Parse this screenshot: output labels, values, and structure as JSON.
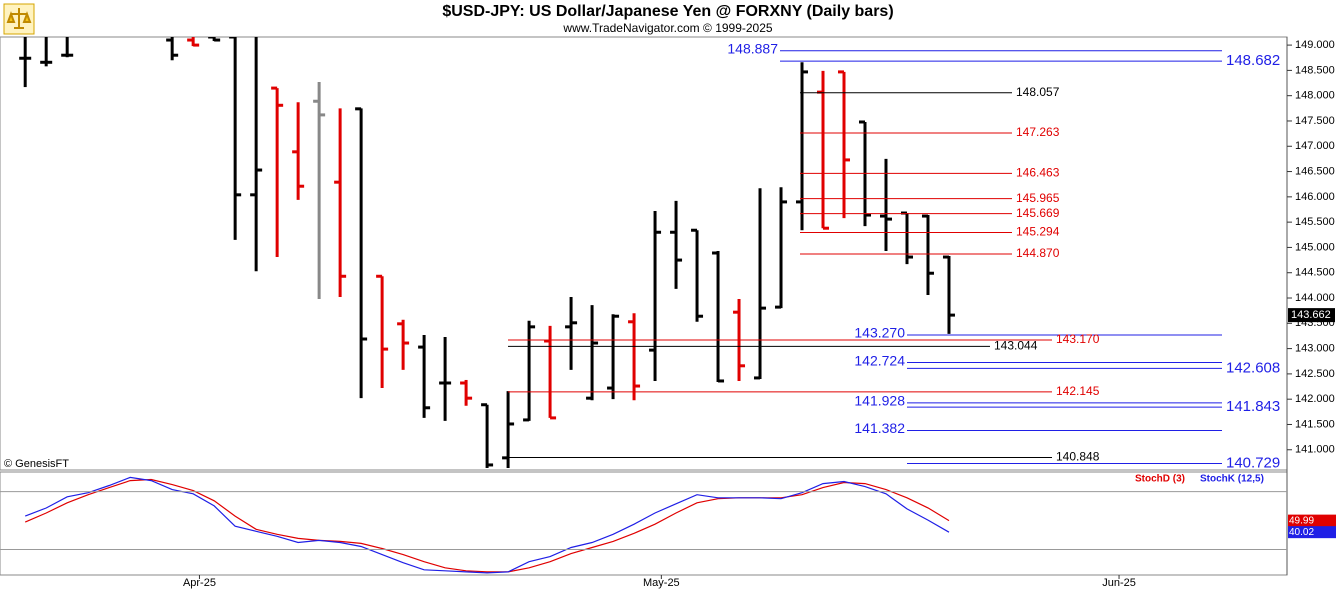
{
  "chart_data": [
    {
      "type": "ohlc",
      "title": "$USD-JPY:  US Dollar/Japanese Yen @ FORXNY  (Daily bars)",
      "subtitle": "www.TradeNavigator.com © 1999-2025",
      "watermark": "© GenesisFT",
      "categories": [
        null,
        null,
        null,
        null,
        null,
        null,
        null,
        null,
        null,
        null,
        null,
        null,
        null,
        null,
        null,
        null,
        null,
        null,
        null,
        null,
        null,
        null,
        null,
        null,
        null,
        null,
        null,
        null,
        null,
        null,
        null,
        null,
        null,
        null,
        null,
        null,
        null,
        null,
        null,
        null,
        null,
        null,
        null,
        null,
        null
      ],
      "xlim": [
        -1.2,
        60.1
      ],
      "xticks": [
        {
          "value": 8.3,
          "label": "Apr-25"
        },
        {
          "value": 30.3,
          "label": "May-25"
        },
        {
          "value": 52.1,
          "label": "Jun-25"
        }
      ],
      "ylim": [
        140.6,
        149.16
      ],
      "yticks": [
        {
          "value": 141,
          "label": "141.000"
        },
        {
          "value": 141.5,
          "label": "141.500"
        },
        {
          "value": 142,
          "label": "142.000"
        },
        {
          "value": 142.5,
          "label": "142.500"
        },
        {
          "value": 143,
          "label": "143.000"
        },
        {
          "value": 143.5,
          "label": "143.500"
        },
        {
          "value": 144,
          "label": "144.000"
        },
        {
          "value": 144.5,
          "label": "144.500"
        },
        {
          "value": 145,
          "label": "145.000"
        },
        {
          "value": 145.5,
          "label": "145.500"
        },
        {
          "value": 146,
          "label": "146.000"
        },
        {
          "value": 146.5,
          "label": "146.500"
        },
        {
          "value": 147,
          "label": "147.000"
        },
        {
          "value": 147.5,
          "label": "147.500"
        },
        {
          "value": 148,
          "label": "148.000"
        },
        {
          "value": 148.5,
          "label": "148.500"
        },
        {
          "value": 149,
          "label": "149.000"
        }
      ],
      "series": [
        {
          "open": [
            148.74,
            148.66,
            148.8,
            null,
            null,
            null,
            null,
            149.1,
            149.1,
            149.16,
            149.16,
            146.04,
            148.15,
            146.89,
            147.89,
            146.29,
            147.74,
            144.43,
            143.49,
            143.03,
            142.32,
            142.32,
            141.89,
            140.84,
            141.59,
            143.15,
            143.43,
            142.02,
            142.22,
            143.53,
            142.97,
            145.3,
            145.34,
            144.89,
            143.72,
            142.42,
            143.82,
            145.9,
            148.07,
            148.47,
            147.48,
            145.62,
            145.68,
            145.62,
            144.81
          ],
          "high": [
            149.16,
            149.16,
            149.16,
            null,
            null,
            null,
            null,
            149.16,
            149.16,
            149.16,
            149.16,
            149.16,
            148.15,
            147.87,
            148.27,
            147.75,
            147.75,
            144.43,
            143.57,
            143.27,
            143.23,
            142.38,
            141.89,
            142.16,
            143.55,
            143.45,
            144.02,
            143.86,
            143.68,
            143.7,
            145.72,
            145.92,
            145.34,
            144.93,
            143.98,
            146.17,
            146.19,
            148.66,
            148.49,
            148.47,
            147.48,
            146.75,
            145.68,
            145.64,
            144.83
          ],
          "low": [
            148.17,
            148.58,
            148.76,
            null,
            null,
            null,
            null,
            148.7,
            148.98,
            149.08,
            145.15,
            144.53,
            144.81,
            145.94,
            143.98,
            144.02,
            142.02,
            142.22,
            142.58,
            141.63,
            141.57,
            141.87,
            140.64,
            140.64,
            141.57,
            141.63,
            142.58,
            141.98,
            142.0,
            141.98,
            142.36,
            144.18,
            143.53,
            142.34,
            142.36,
            142.4,
            143.8,
            145.34,
            145.38,
            145.58,
            145.42,
            144.93,
            144.67,
            144.06,
            143.29
          ],
          "close": [
            148.74,
            148.66,
            148.8,
            null,
            null,
            null,
            null,
            148.8,
            149.0,
            149.1,
            146.04,
            146.53,
            147.81,
            146.21,
            147.62,
            144.43,
            143.19,
            142.99,
            143.11,
            141.83,
            142.32,
            142.02,
            140.7,
            141.51,
            143.43,
            141.63,
            143.51,
            143.11,
            143.64,
            142.26,
            145.3,
            144.75,
            143.64,
            142.36,
            142.66,
            143.8,
            145.9,
            148.47,
            145.38,
            146.73,
            145.64,
            145.56,
            144.81,
            144.49,
            143.662
          ],
          "colors": [
            "#000000",
            "#000000",
            "#000000",
            null,
            null,
            null,
            null,
            "#000000",
            "#e00000",
            "#000000",
            "#000000",
            "#000000",
            "#e00000",
            "#e00000",
            "#888888",
            "#e00000",
            "#000000",
            "#e00000",
            "#e00000",
            "#000000",
            "#000000",
            "#e00000",
            "#000000",
            "#000000",
            "#000000",
            "#e00000",
            "#000000",
            "#000000",
            "#000000",
            "#e00000",
            "#000000",
            "#000000",
            "#000000",
            "#000000",
            "#e00000",
            "#000000",
            "#000000",
            "#000000",
            "#e00000",
            "#e00000",
            "#000000",
            "#000000",
            "#000000",
            "#000000",
            "#000000"
          ]
        }
      ],
      "levels": {
        "values": [
          148.887,
          148.682,
          148.057,
          147.263,
          146.463,
          145.965,
          145.669,
          145.294,
          144.87,
          143.27,
          143.17,
          143.044,
          142.724,
          142.608,
          142.145,
          141.928,
          141.843,
          141.382,
          140.848,
          140.729
        ],
        "value_labels": [
          "148.887",
          "148.682",
          "148.057",
          "147.263",
          "146.463",
          "145.965",
          "145.669",
          "145.294",
          "144.870",
          "143.270",
          "143.170",
          "143.044",
          "142.724",
          "142.608",
          "142.145",
          "141.928",
          "141.843",
          "141.382",
          "140.848",
          "140.729"
        ],
        "colors": [
          "#1f1fe6",
          "#1f1fe6",
          "#000000",
          "#e00000",
          "#e00000",
          "#e00000",
          "#e00000",
          "#e00000",
          "#e00000",
          "#1f1fe6",
          "#e00000",
          "#000000",
          "#1f1fe6",
          "#1f1fe6",
          "#e00000",
          "#1f1fe6",
          "#1f1fe6",
          "#1f1fe6",
          "#000000",
          "#1f1fe6"
        ]
      }
    },
    {
      "type": "line",
      "ylim": [
        3,
        92
      ],
      "guide_lines": [
        25,
        75
      ],
      "series": [
        {
          "name": "StochD (3)",
          "color": "#e00000",
          "values": [
            48.7,
            56.6,
            65.4,
            72.4,
            78.5,
            84.6,
            85.5,
            81.1,
            75.9,
            67.1,
            53.9,
            42.5,
            38.2,
            34.6,
            32.9,
            32.0,
            30.3,
            25.9,
            20.6,
            14.5,
            9.2,
            6.6,
            5.7,
            5.7,
            9.2,
            14.5,
            21.5,
            26.8,
            32.0,
            39.0,
            46.9,
            56.6,
            65.4,
            68.9,
            69.7,
            69.7,
            69.7,
            72.4,
            78.5,
            82.9,
            82.0,
            76.8,
            69.7,
            61.0,
            49.99
          ]
        },
        {
          "name": "StochK (12,5)",
          "color": "#1f1fe6",
          "values": [
            53.9,
            60.9,
            70.6,
            74.1,
            80.3,
            87.3,
            84.6,
            76.8,
            73.2,
            62.7,
            45.2,
            40.8,
            36.4,
            31.1,
            32.9,
            31.1,
            27.6,
            20.6,
            13.6,
            7.5,
            6.6,
            5.7,
            4.8,
            5.7,
            14.5,
            18.9,
            26.8,
            31.1,
            38.2,
            46.9,
            56.6,
            64.5,
            72.4,
            69.7,
            69.7,
            69.7,
            68.9,
            74.1,
            82.0,
            83.8,
            79.4,
            73.2,
            60.1,
            50.4,
            40.02
          ]
        }
      ]
    }
  ]
}
